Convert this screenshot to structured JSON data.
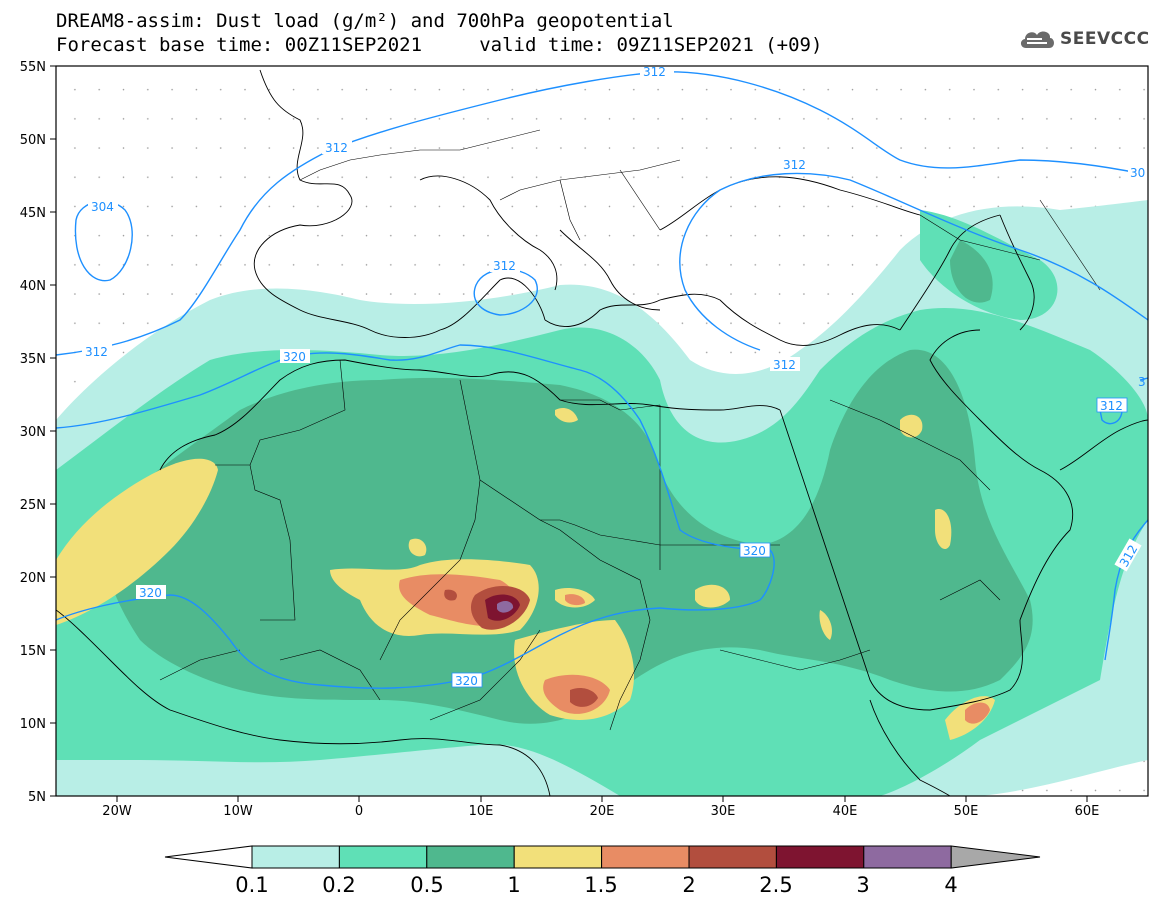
{
  "title": {
    "line1": "DREAM8-assim: Dust load (g/m²) and 700hPa geopotential",
    "line2": "Forecast base time: 00Z11SEP2021     valid time: 09Z11SEP2021 (+09)"
  },
  "logo": {
    "text": "SEEVCCC",
    "icon": "cloud-icon"
  },
  "axes": {
    "lat_labels": [
      "55N",
      "50N",
      "45N",
      "40N",
      "35N",
      "30N",
      "25N",
      "20N",
      "15N",
      "10N",
      "5N"
    ],
    "lon_labels": [
      "20W",
      "10W",
      "0",
      "10E",
      "20E",
      "30E",
      "40E",
      "50E",
      "60E"
    ],
    "lat_range": [
      5,
      55
    ],
    "lon_range": [
      -25,
      65
    ]
  },
  "colorbar": {
    "labels": [
      "0.1",
      "0.2",
      "0.5",
      "1",
      "1.5",
      "2",
      "2.5",
      "3",
      "4"
    ],
    "colors": [
      "#ffffff",
      "#b8eee6",
      "#5fe0b6",
      "#4fb88e",
      "#f2e07a",
      "#e88c64",
      "#b24e3e",
      "#7e1430",
      "#8e6aa0",
      "#a8a8a8"
    ]
  },
  "contours": {
    "color": "#1e90ff",
    "labels": [
      "312",
      "312",
      "304",
      "312",
      "312",
      "312",
      "320",
      "312",
      "320",
      "320",
      "312",
      "312",
      "30",
      "3"
    ]
  }
}
